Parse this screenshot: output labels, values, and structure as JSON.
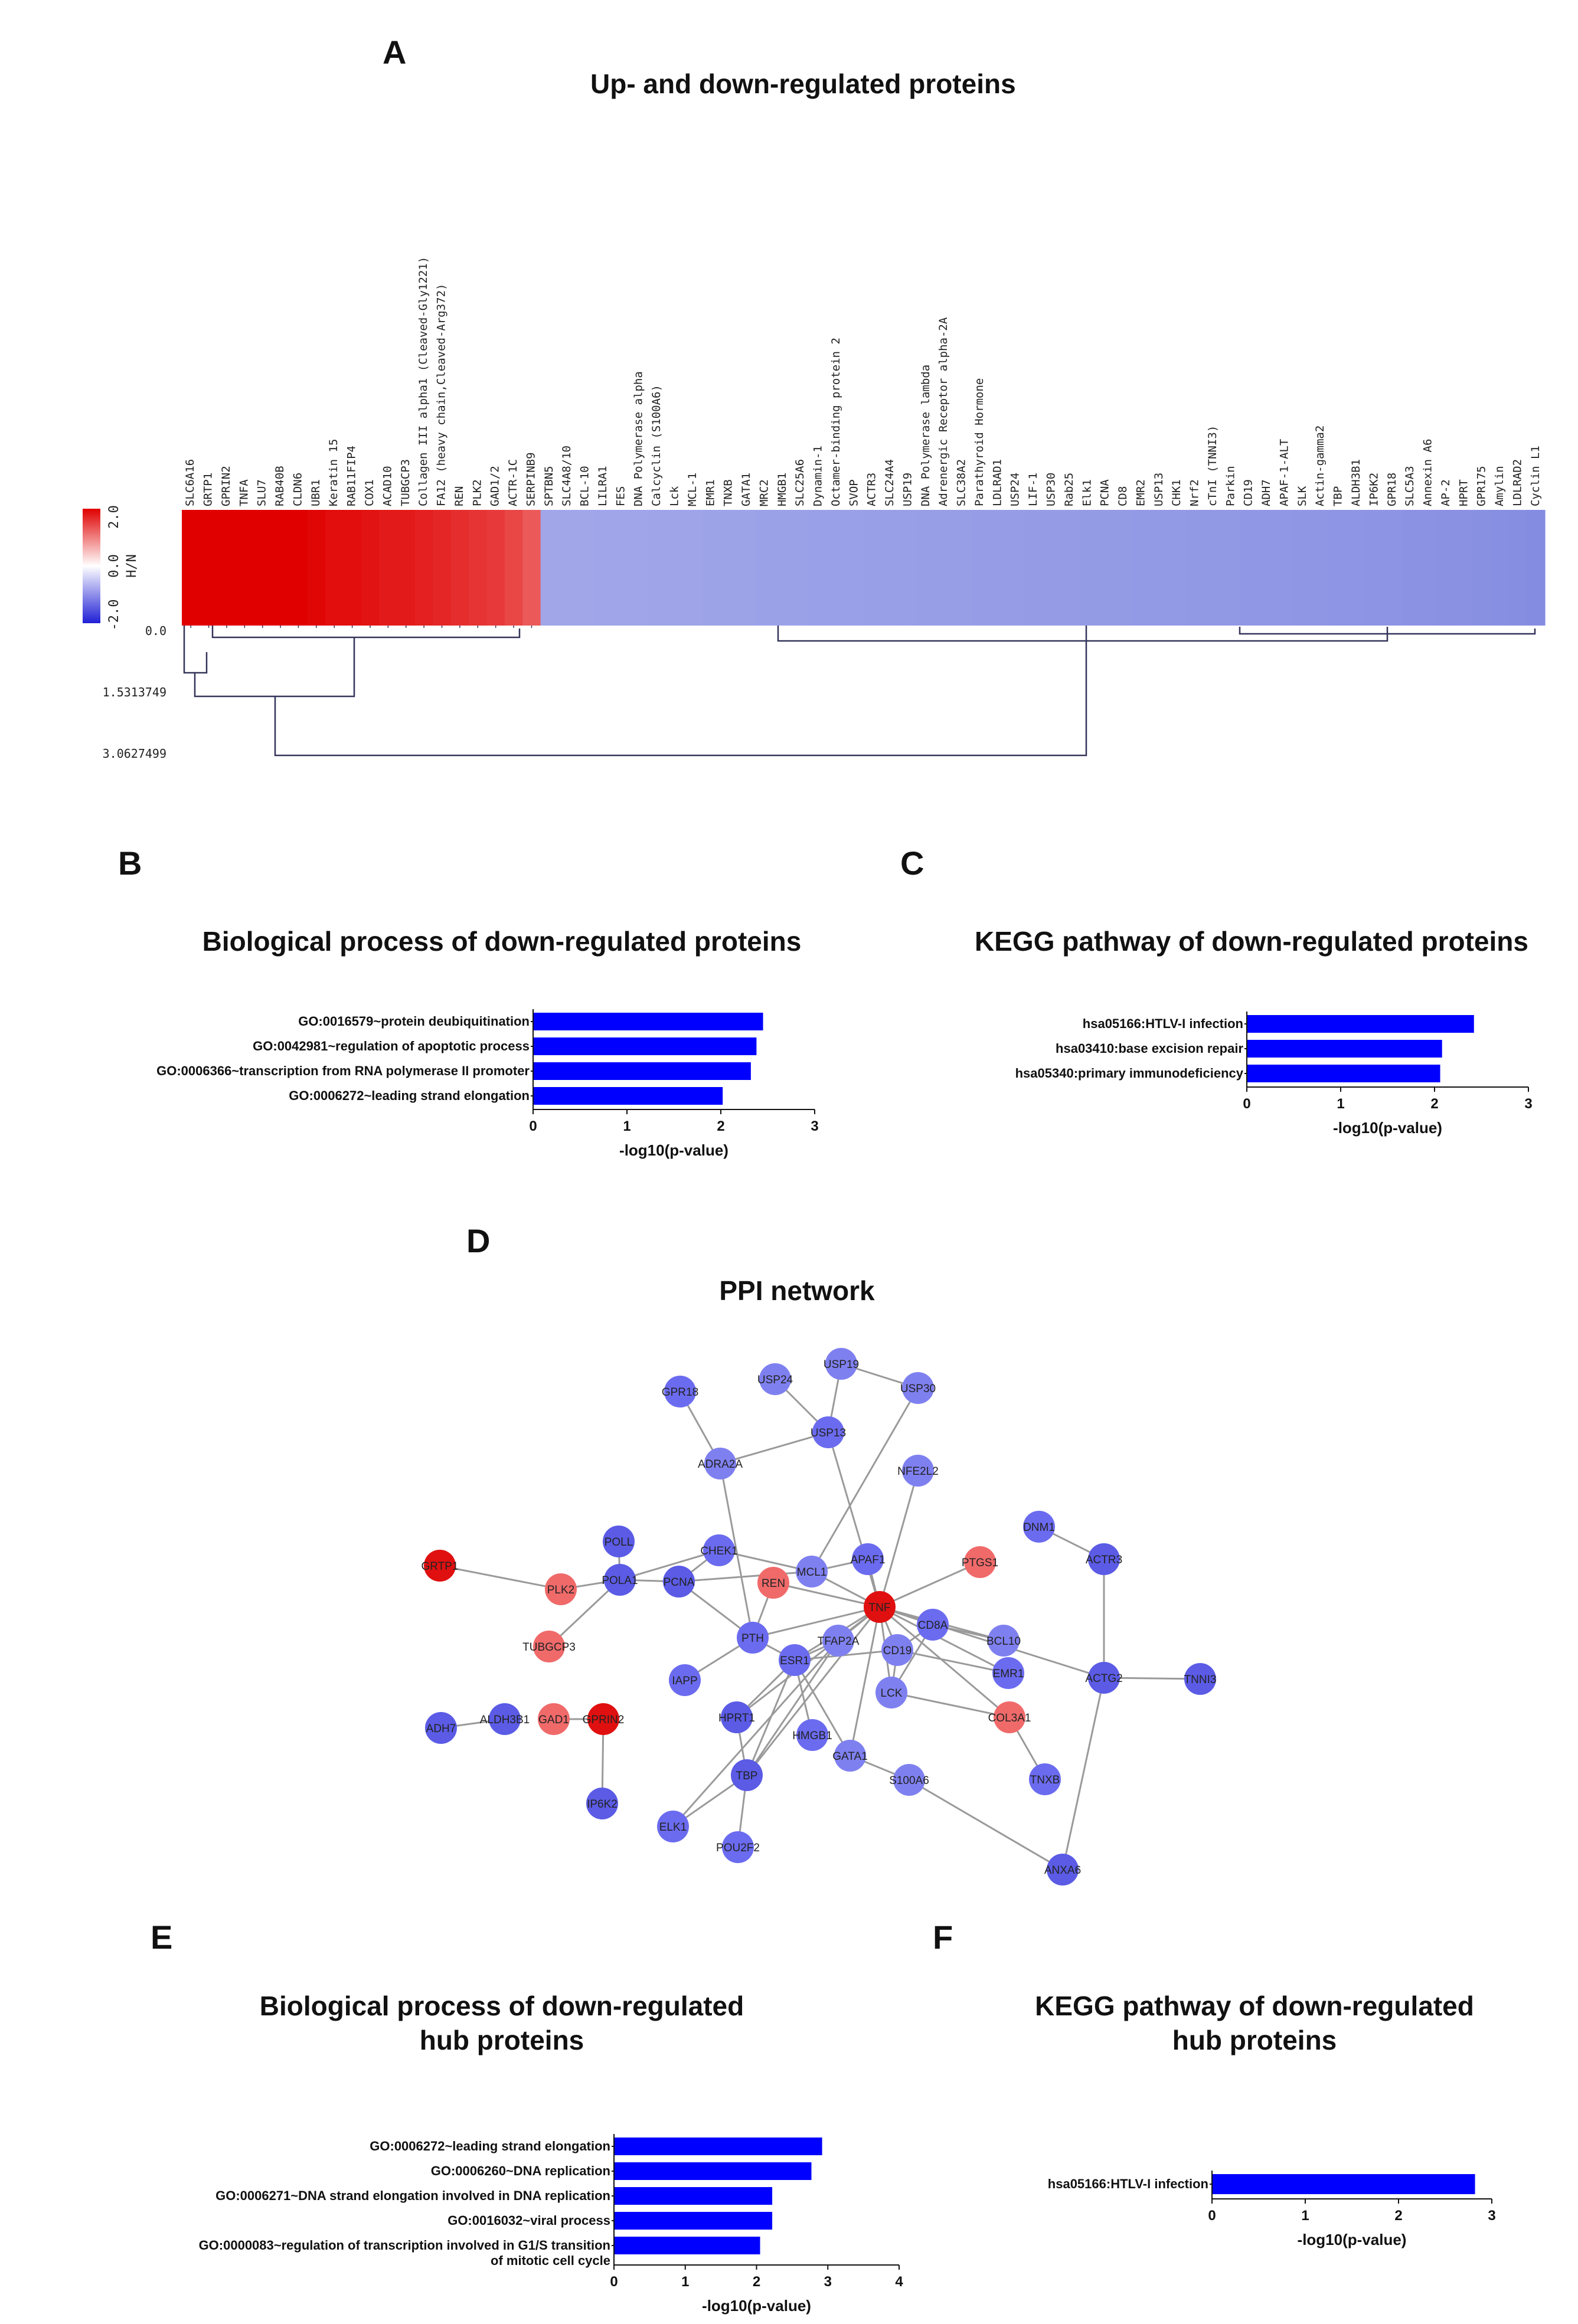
{
  "panels": {
    "a": {
      "letter": "A",
      "title": "Up- and down-regulated proteins"
    },
    "b": {
      "letter": "B",
      "title": "Biological process of down-regulated proteins"
    },
    "c": {
      "letter": "C",
      "title": "KEGG pathway of down-regulated proteins"
    },
    "d": {
      "letter": "D",
      "title": "PPI network"
    },
    "e": {
      "letter": "E",
      "title_line1": "Biological process of down-regulated",
      "title_line2": "hub proteins"
    },
    "f": {
      "letter": "F",
      "title_line1": "KEGG pathway of down-regulated",
      "title_line2": "hub proteins"
    }
  },
  "chart_data": [
    {
      "id": "heatmap",
      "type": "heatmap",
      "title": "Up- and down-regulated proteins",
      "color_scale": {
        "min": -2.0,
        "mid": 0.0,
        "max": 2.0,
        "label": "H/N",
        "ticks": [
          "2.0",
          "0.0",
          "-2.0"
        ],
        "low_color": "#1f1fd6",
        "mid_color": "#ffffff",
        "high_color": "#e00000"
      },
      "dendrogram_axis": [
        "0.0",
        "1.5313749",
        "3.0627499"
      ],
      "proteins": [
        "SLC6A16",
        "GRTP1",
        "GPRIN2",
        "TNFA",
        "SLU7",
        "RAB40B",
        "CLDN6",
        "UBR1",
        "Keratin 15",
        "RAB11FIP4",
        "COX1",
        "ACAD10",
        "TUBGCP3",
        "Collagen III alpha1 (Cleaved-Gly1221)",
        "FA12 (heavy chain,Cleaved-Arg372)",
        "REN",
        "PLK2",
        "GAD1/2",
        "ACTR-1C",
        "SERPINB9",
        "SPTBN5",
        "SLC4A8/10",
        "BCL-10",
        "LILRA1",
        "FES",
        "DNA Polymerase alpha",
        "Calcyclin (S100A6)",
        "Lck",
        "MCL-1",
        "EMR1",
        "TNXB",
        "GATA1",
        "MRC2",
        "HMGB1",
        "SLC25A6",
        "Dynamin-1",
        "Octamer-binding protein 2",
        "SVOP",
        "ACTR3",
        "SLC24A4",
        "USP19",
        "DNA Polymerase lambda",
        "Adrenergic Receptor alpha-2A",
        "SLC38A2",
        "Parathyroid Hormone",
        "LDLRAD1",
        "USP24",
        "LIF-1",
        "USP30",
        "Rab25",
        "Elk1",
        "PCNA",
        "CD8",
        "EMR2",
        "USP13",
        "CHK1",
        "Nrf2",
        "cTnI (TNNI3)",
        "Parkin",
        "CD19",
        "ADH7",
        "APAF-1-ALT",
        "SLK",
        "Actin-gamma2",
        "TBP",
        "ALDH3B1",
        "IP6K2",
        "GPR18",
        "SLC5A3",
        "Annexin A6",
        "AP-2",
        "HPRT",
        "GPR175",
        "Amylin",
        "LDLRAD2",
        "Cyclin L1"
      ],
      "up_count": 20,
      "values": [
        2.3,
        2.2,
        2.2,
        2.1,
        2.1,
        2.0,
        2.0,
        1.95,
        1.9,
        1.9,
        1.85,
        1.8,
        1.8,
        1.75,
        1.7,
        1.65,
        1.6,
        1.55,
        1.45,
        1.3,
        -1.2,
        -1.2,
        -1.2,
        -1.22,
        -1.22,
        -1.22,
        -1.24,
        -1.24,
        -1.24,
        -1.26,
        -1.26,
        -1.26,
        -1.28,
        -1.28,
        -1.28,
        -1.3,
        -1.3,
        -1.3,
        -1.32,
        -1.32,
        -1.32,
        -1.34,
        -1.34,
        -1.34,
        -1.36,
        -1.36,
        -1.36,
        -1.38,
        -1.38,
        -1.38,
        -1.4,
        -1.4,
        -1.4,
        -1.42,
        -1.42,
        -1.42,
        -1.44,
        -1.44,
        -1.44,
        -1.46,
        -1.46,
        -1.46,
        -1.48,
        -1.48,
        -1.5,
        -1.5,
        -1.52,
        -1.52,
        -1.54,
        -1.54,
        -1.56,
        -1.56,
        -1.58,
        -1.6,
        -1.62,
        -1.65
      ]
    },
    {
      "id": "bp_down",
      "type": "bar",
      "orientation": "horizontal",
      "title": "Biological process of down-regulated proteins",
      "categories": [
        "GO:0016579~protein deubiquitination",
        "GO:0042981~regulation of apoptotic process",
        "GO:0006366~transcription from RNA polymerase II promoter",
        "GO:0006272~leading strand elongation"
      ],
      "values": [
        2.45,
        2.38,
        2.32,
        2.02
      ],
      "xlabel": "-log10(p-value)",
      "xlim": [
        0,
        3
      ],
      "ticks": [
        "0",
        "1",
        "2",
        "3"
      ],
      "color": "#0000ff"
    },
    {
      "id": "kegg_down",
      "type": "bar",
      "orientation": "horizontal",
      "title": "KEGG pathway of down-regulated proteins",
      "categories": [
        "hsa05166:HTLV-I infection",
        "hsa03410:base excision repair",
        "hsa05340:primary immunodeficiency"
      ],
      "values": [
        2.42,
        2.08,
        2.06
      ],
      "xlabel": "-log10(p-value)",
      "xlim": [
        0,
        3
      ],
      "ticks": [
        "0",
        "1",
        "2",
        "3"
      ],
      "color": "#0000ff"
    },
    {
      "id": "ppi",
      "type": "network",
      "title": "PPI network",
      "nodes": [
        {
          "id": "GRTP1",
          "status": "up"
        },
        {
          "id": "PLK2",
          "status": "up"
        },
        {
          "id": "TUBGCP3",
          "status": "up"
        },
        {
          "id": "GAD1",
          "status": "up"
        },
        {
          "id": "GPRIN2",
          "status": "up"
        },
        {
          "id": "REN",
          "status": "up"
        },
        {
          "id": "TNF",
          "status": "up"
        },
        {
          "id": "PTGS1",
          "status": "up"
        },
        {
          "id": "COL3A1",
          "status": "up"
        },
        {
          "id": "GPR18",
          "status": "down"
        },
        {
          "id": "USP24",
          "status": "down"
        },
        {
          "id": "USP19",
          "status": "down"
        },
        {
          "id": "USP30",
          "status": "down"
        },
        {
          "id": "USP13",
          "status": "down"
        },
        {
          "id": "ADRA2A",
          "status": "down"
        },
        {
          "id": "NFE2L2",
          "status": "down"
        },
        {
          "id": "POLL",
          "status": "down"
        },
        {
          "id": "POLA1",
          "status": "down"
        },
        {
          "id": "PCNA",
          "status": "down"
        },
        {
          "id": "CHEK1",
          "status": "down"
        },
        {
          "id": "MCL1",
          "status": "down"
        },
        {
          "id": "APAF1",
          "status": "down"
        },
        {
          "id": "DNM1",
          "status": "down"
        },
        {
          "id": "ACTR3",
          "status": "down"
        },
        {
          "id": "CD8A",
          "status": "down"
        },
        {
          "id": "BCL10",
          "status": "down"
        },
        {
          "id": "PTH",
          "status": "down"
        },
        {
          "id": "TFAP2A",
          "status": "down"
        },
        {
          "id": "CD19",
          "status": "down"
        },
        {
          "id": "ESR1",
          "status": "down"
        },
        {
          "id": "IAPP",
          "status": "down"
        },
        {
          "id": "LCK",
          "status": "down"
        },
        {
          "id": "EMR1",
          "status": "down"
        },
        {
          "id": "ACTG2",
          "status": "down"
        },
        {
          "id": "TNNI3",
          "status": "down"
        },
        {
          "id": "ADH7",
          "status": "down"
        },
        {
          "id": "ALDH3B1",
          "status": "down"
        },
        {
          "id": "HPRT1",
          "status": "down"
        },
        {
          "id": "HMGB1",
          "status": "down"
        },
        {
          "id": "TBP",
          "status": "down"
        },
        {
          "id": "GATA1",
          "status": "down"
        },
        {
          "id": "S100A6",
          "status": "down"
        },
        {
          "id": "TNXB",
          "status": "down"
        },
        {
          "id": "IP6K2",
          "status": "down"
        },
        {
          "id": "ELK1",
          "status": "down"
        },
        {
          "id": "POU2F2",
          "status": "down"
        },
        {
          "id": "ANXA6",
          "status": "down"
        }
      ],
      "edges": [
        [
          "GRTP1",
          "PLK2"
        ],
        [
          "PLK2",
          "POLA1"
        ],
        [
          "POLA1",
          "TUBGCP3"
        ],
        [
          "POLA1",
          "POLL"
        ],
        [
          "POLA1",
          "PCNA"
        ],
        [
          "PCNA",
          "CHEK1"
        ],
        [
          "PCNA",
          "PTH"
        ],
        [
          "CHEK1",
          "MCL1"
        ],
        [
          "MCL1",
          "APAF1"
        ],
        [
          "MCL1",
          "TNF"
        ],
        [
          "MCL1",
          "PCNA"
        ],
        [
          "ADRA2A",
          "GPR18"
        ],
        [
          "ADRA2A",
          "USP13"
        ],
        [
          "ADRA2A",
          "PTH"
        ],
        [
          "USP24",
          "USP13"
        ],
        [
          "USP19",
          "USP13"
        ],
        [
          "USP19",
          "USP30"
        ],
        [
          "USP13",
          "TNF"
        ],
        [
          "NFE2L2",
          "TNF"
        ],
        [
          "REN",
          "PTH"
        ],
        [
          "REN",
          "TNF"
        ],
        [
          "PTGS1",
          "TNF"
        ],
        [
          "TNF",
          "CD8A"
        ],
        [
          "TNF",
          "TFAP2A"
        ],
        [
          "TNF",
          "CD19"
        ],
        [
          "TNF",
          "ESR1"
        ],
        [
          "TNF",
          "LCK"
        ],
        [
          "TNF",
          "EMR1"
        ],
        [
          "TNF",
          "COL3A1"
        ],
        [
          "TNF",
          "HPRT1"
        ],
        [
          "TNF",
          "TBP"
        ],
        [
          "TNF",
          "ACTG2"
        ],
        [
          "TNF",
          "PTH"
        ],
        [
          "TNF",
          "GATA1"
        ],
        [
          "TNF",
          "BCL10"
        ],
        [
          "CD8A",
          "CD19"
        ],
        [
          "CD8A",
          "LCK"
        ],
        [
          "CD8A",
          "BCL10"
        ],
        [
          "CD19",
          "LCK"
        ],
        [
          "ESR1",
          "TFAP2A"
        ],
        [
          "ESR1",
          "HPRT1"
        ],
        [
          "ESR1",
          "TBP"
        ],
        [
          "ESR1",
          "HMGB1"
        ],
        [
          "ESR1",
          "GATA1"
        ],
        [
          "ESR1",
          "PTH"
        ],
        [
          "ESR1",
          "CD19"
        ],
        [
          "TFAP2A",
          "TBP"
        ],
        [
          "TFAP2A",
          "ELK1"
        ],
        [
          "TBP",
          "POU2F2"
        ],
        [
          "TBP",
          "ELK1"
        ],
        [
          "TBP",
          "HPRT1"
        ],
        [
          "GATA1",
          "S100A6"
        ],
        [
          "COL3A1",
          "TNXB"
        ],
        [
          "COL3A1",
          "LCK"
        ],
        [
          "EMR1",
          "CD19"
        ],
        [
          "ACTG2",
          "TNNI3"
        ],
        [
          "ACTG2",
          "ACTR3"
        ],
        [
          "ACTR3",
          "DNM1"
        ],
        [
          "ACTG2",
          "ANXA6"
        ],
        [
          "S100A6",
          "ANXA6"
        ],
        [
          "GPRIN2",
          "GAD1"
        ],
        [
          "GPRIN2",
          "IP6K2"
        ],
        [
          "ALDH3B1",
          "ADH7"
        ],
        [
          "POLA1",
          "CHEK1"
        ],
        [
          "PTH",
          "IAPP"
        ],
        [
          "USP30",
          "MCL1"
        ],
        [
          "APAF1",
          "TNF"
        ]
      ]
    },
    {
      "id": "bp_hub",
      "type": "bar",
      "orientation": "horizontal",
      "title": "Biological process of down-regulated hub proteins",
      "categories": [
        [
          "GO:0006272~leading strand elongation"
        ],
        [
          "GO:0006260~DNA replication"
        ],
        [
          "GO:0006271~DNA strand elongation involved in DNA replication"
        ],
        [
          "GO:0016032~viral process"
        ],
        [
          "GO:0000083~regulation of transcription involved in G1/S transition",
          "of mitotic cell cycle"
        ]
      ],
      "values": [
        2.92,
        2.77,
        2.22,
        2.22,
        2.05
      ],
      "xlabel": "-log10(p-value)",
      "xlim": [
        0,
        4
      ],
      "ticks": [
        "0",
        "1",
        "2",
        "3",
        "4"
      ],
      "color": "#0000ff"
    },
    {
      "id": "kegg_hub",
      "type": "bar",
      "orientation": "horizontal",
      "title": "KEGG pathway of down-regulated hub proteins",
      "categories": [
        "hsa05166:HTLV-I infection"
      ],
      "values": [
        2.82
      ],
      "xlabel": "-log10(p-value)",
      "xlim": [
        0,
        3
      ],
      "ticks": [
        "0",
        "1",
        "2",
        "3"
      ],
      "color": "#0000ff"
    }
  ]
}
